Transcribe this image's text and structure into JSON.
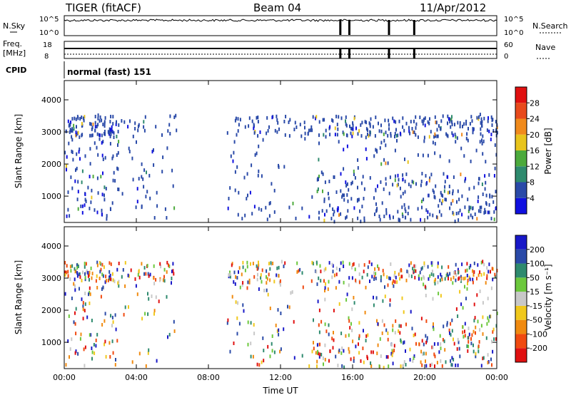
{
  "header": {
    "title": "TIGER (fitACF)",
    "beam": "Beam 04",
    "date": "11/Apr/2012"
  },
  "summary": {
    "nsky_label": "N.Sky",
    "nsearch_label": "N.Search",
    "freq_label": "Freq.",
    "freq_unit": "[MHz]",
    "nave_label": "Nave",
    "cpid_label": "CPID",
    "cpid_value": "normal (fast) 151",
    "noise_ticks_left": [
      "10^5",
      "10^0"
    ],
    "noise_ticks_right": [
      "10^5",
      "10^0"
    ],
    "freq_ticks": [
      "18",
      "8"
    ],
    "nave_ticks": [
      "60",
      "0"
    ]
  },
  "colors": {
    "power": [
      "#1010e0",
      "#2a4aa8",
      "#2e8a6e",
      "#4caa3c",
      "#e8c41c",
      "#f08a1c",
      "#e84a1c",
      "#e01010"
    ],
    "velocity": [
      "#e01010",
      "#f04a10",
      "#f08a10",
      "#f0c81c",
      "#c8c8c8",
      "#6cc83c",
      "#2e8a6e",
      "#2a4aa8",
      "#1818c8"
    ]
  },
  "chart_data": [
    {
      "type": "heatmap",
      "name": "power",
      "ylabel": "Slant Range [km]",
      "yticks": [
        "1000",
        "2000",
        "3000",
        "4000"
      ],
      "ylim": [
        180,
        4600
      ],
      "xlim": [
        0,
        24
      ],
      "xticks": [
        "00:00",
        "04:00",
        "08:00",
        "12:00",
        "16:00",
        "20:00",
        "00:00"
      ],
      "colorbar": {
        "label": "Power [dB]",
        "ticks": [
          "4",
          "8",
          "12",
          "16",
          "20",
          "24",
          "28"
        ],
        "range": [
          0,
          32
        ]
      }
    },
    {
      "type": "heatmap",
      "name": "velocity",
      "ylabel": "Slant Range [km]",
      "yticks": [
        "1000",
        "2000",
        "3000",
        "4000"
      ],
      "ylim": [
        180,
        4600
      ],
      "xlim": [
        0,
        24
      ],
      "xticks": [
        "00:00",
        "04:00",
        "08:00",
        "12:00",
        "16:00",
        "20:00",
        "00:00"
      ],
      "xlabel": "Time UT",
      "colorbar": {
        "label": "Velocity [m s⁻¹]",
        "ticks": [
          "-200",
          "-100",
          "-50",
          "-15",
          "15",
          "50",
          "100",
          "200"
        ],
        "range": [
          -250,
          250
        ]
      }
    }
  ]
}
